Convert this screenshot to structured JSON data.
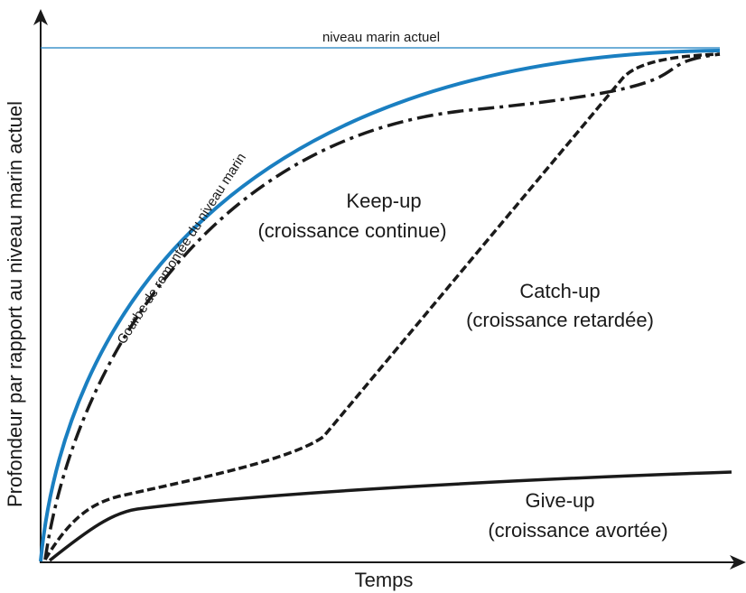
{
  "axes": {
    "y_label": "Profondeur par rapport au niveau marin actuel",
    "x_label": "Temps"
  },
  "sea_level_label": "niveau marin actuel",
  "curves": {
    "sea_level_rise": "Courbe de remontée du niveau marin",
    "keep_up": {
      "name": "Keep-up",
      "description": "(croissance continue)"
    },
    "catch_up": {
      "name": "Catch-up",
      "description": "(croissance retardée)"
    },
    "give_up": {
      "name": "Give-up",
      "description": "(croissance avortée)"
    }
  }
}
